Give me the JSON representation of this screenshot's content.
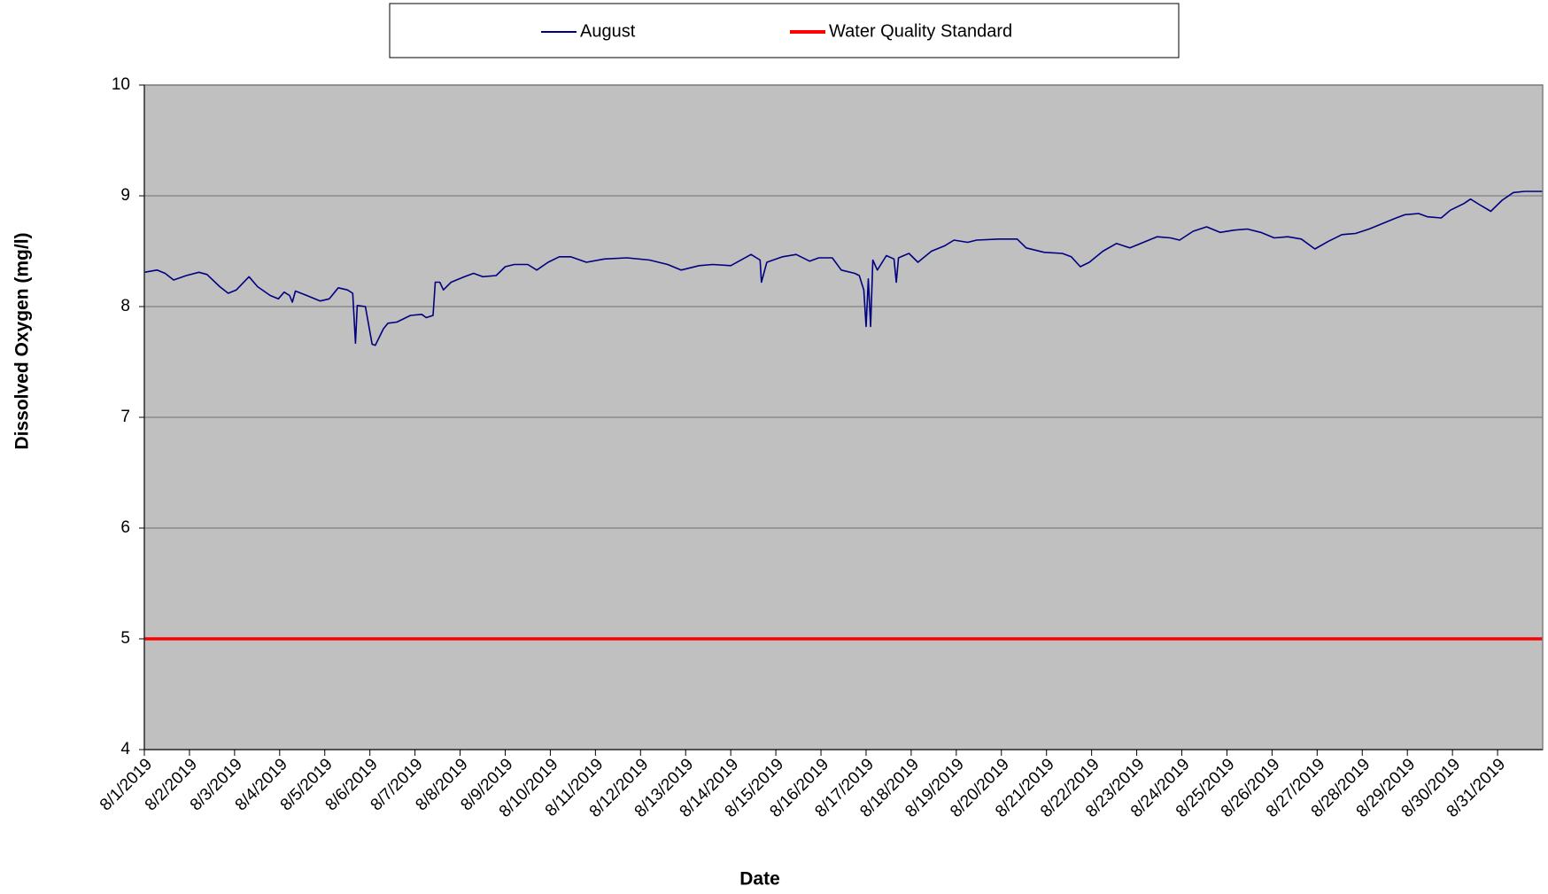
{
  "chart_data": {
    "type": "line",
    "y_label": "Dissolved Oxygen (mg/l)",
    "x_label": "Date",
    "series": [
      {
        "name": "August",
        "color": "#000080",
        "x": [
          0,
          0.28,
          0.46,
          0.65,
          0.93,
          1.21,
          1.39,
          1.67,
          1.86,
          2.04,
          2.32,
          2.51,
          2.79,
          2.97,
          3.1,
          3.22,
          3.28,
          3.35,
          3.6,
          3.9,
          4.1,
          4.3,
          4.5,
          4.62,
          4.68,
          4.72,
          4.9,
          5.05,
          5.12,
          5.3,
          5.4,
          5.6,
          5.9,
          6.15,
          6.25,
          6.4,
          6.45,
          6.55,
          6.63,
          6.8,
          7.1,
          7.3,
          7.5,
          7.8,
          8.0,
          8.2,
          8.5,
          8.7,
          8.95,
          9.2,
          9.45,
          9.8,
          10.2,
          10.7,
          11.2,
          11.6,
          11.9,
          12.3,
          12.6,
          13.0,
          13.45,
          13.65,
          13.68,
          13.8,
          14.15,
          14.45,
          14.75,
          14.95,
          15.25,
          15.45,
          15.75,
          15.85,
          15.95,
          16.0,
          16.05,
          16.1,
          16.15,
          16.25,
          16.45,
          16.62,
          16.67,
          16.72,
          16.95,
          17.15,
          17.45,
          17.75,
          17.95,
          18.25,
          18.45,
          18.95,
          19.35,
          19.55,
          19.95,
          20.35,
          20.55,
          20.75,
          20.95,
          21.25,
          21.55,
          21.85,
          22.15,
          22.45,
          22.75,
          22.95,
          23.25,
          23.55,
          23.85,
          24.15,
          24.45,
          24.75,
          25.05,
          25.35,
          25.65,
          25.95,
          26.25,
          26.55,
          26.85,
          27.15,
          27.45,
          27.75,
          27.95,
          28.25,
          28.45,
          28.75,
          28.95,
          29.25,
          29.4,
          29.6,
          29.85,
          30.1,
          30.35,
          30.6,
          31.0
        ],
        "values": [
          8.31,
          8.33,
          8.3,
          8.24,
          8.28,
          8.31,
          8.29,
          8.18,
          8.12,
          8.15,
          8.27,
          8.18,
          8.1,
          8.07,
          8.13,
          8.1,
          8.04,
          8.14,
          8.1,
          8.05,
          8.07,
          8.17,
          8.15,
          8.12,
          7.67,
          8.01,
          8.0,
          7.66,
          7.65,
          7.8,
          7.85,
          7.86,
          7.92,
          7.93,
          7.9,
          7.92,
          8.22,
          8.22,
          8.15,
          8.22,
          8.27,
          8.3,
          8.27,
          8.28,
          8.36,
          8.38,
          8.38,
          8.33,
          8.4,
          8.45,
          8.45,
          8.4,
          8.43,
          8.44,
          8.42,
          8.38,
          8.33,
          8.37,
          8.38,
          8.37,
          8.47,
          8.42,
          8.22,
          8.4,
          8.45,
          8.47,
          8.41,
          8.44,
          8.44,
          8.33,
          8.3,
          8.28,
          8.15,
          7.82,
          8.25,
          7.82,
          8.42,
          8.33,
          8.46,
          8.43,
          8.22,
          8.44,
          8.48,
          8.4,
          8.5,
          8.55,
          8.6,
          8.58,
          8.6,
          8.61,
          8.61,
          8.53,
          8.49,
          8.48,
          8.45,
          8.36,
          8.4,
          8.5,
          8.57,
          8.53,
          8.58,
          8.63,
          8.62,
          8.6,
          8.68,
          8.72,
          8.67,
          8.69,
          8.7,
          8.67,
          8.62,
          8.63,
          8.61,
          8.52,
          8.59,
          8.65,
          8.66,
          8.7,
          8.75,
          8.8,
          8.83,
          8.84,
          8.81,
          8.8,
          8.87,
          8.93,
          8.97,
          8.92,
          8.86,
          8.96,
          9.03,
          9.04,
          9.04
        ]
      },
      {
        "name": "Water Quality Standard",
        "color": "#ff0000",
        "x": [
          0,
          31
        ],
        "values": [
          5,
          5
        ]
      }
    ],
    "xlim": [
      0,
      31
    ],
    "xticks": [
      {
        "value": 0,
        "label": "8/1/2019"
      },
      {
        "value": 1,
        "label": "8/2/2019"
      },
      {
        "value": 2,
        "label": "8/3/2019"
      },
      {
        "value": 3,
        "label": "8/4/2019"
      },
      {
        "value": 4,
        "label": "8/5/2019"
      },
      {
        "value": 5,
        "label": "8/6/2019"
      },
      {
        "value": 6,
        "label": "8/7/2019"
      },
      {
        "value": 7,
        "label": "8/8/2019"
      },
      {
        "value": 8,
        "label": "8/9/2019"
      },
      {
        "value": 9,
        "label": "8/10/2019"
      },
      {
        "value": 10,
        "label": "8/11/2019"
      },
      {
        "value": 11,
        "label": "8/12/2019"
      },
      {
        "value": 12,
        "label": "8/13/2019"
      },
      {
        "value": 13,
        "label": "8/14/2019"
      },
      {
        "value": 14,
        "label": "8/15/2019"
      },
      {
        "value": 15,
        "label": "8/16/2019"
      },
      {
        "value": 16,
        "label": "8/17/2019"
      },
      {
        "value": 17,
        "label": "8/18/2019"
      },
      {
        "value": 18,
        "label": "8/19/2019"
      },
      {
        "value": 19,
        "label": "8/20/2019"
      },
      {
        "value": 20,
        "label": "8/21/2019"
      },
      {
        "value": 21,
        "label": "8/22/2019"
      },
      {
        "value": 22,
        "label": "8/23/2019"
      },
      {
        "value": 23,
        "label": "8/24/2019"
      },
      {
        "value": 24,
        "label": "8/25/2019"
      },
      {
        "value": 25,
        "label": "8/26/2019"
      },
      {
        "value": 26,
        "label": "8/27/2019"
      },
      {
        "value": 27,
        "label": "8/28/2019"
      },
      {
        "value": 28,
        "label": "8/29/2019"
      },
      {
        "value": 29,
        "label": "8/30/2019"
      },
      {
        "value": 30,
        "label": "8/31/2019"
      }
    ],
    "ylim": [
      4,
      10
    ],
    "yticks": [
      4,
      5,
      6,
      7,
      8,
      9,
      10
    ],
    "grid": true,
    "legend": "top"
  }
}
